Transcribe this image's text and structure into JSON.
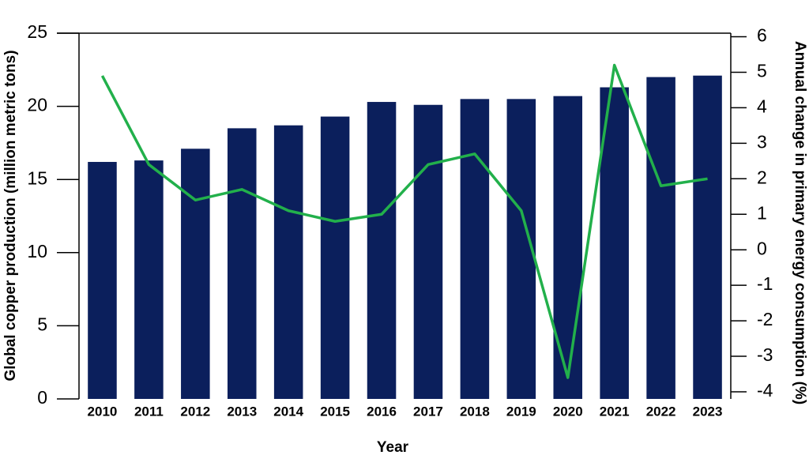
{
  "chart_data": {
    "type": "bar-line",
    "x_label": "Year",
    "y_label": "Global copper production (million metric tons)",
    "y2_label": "Annual change in primary energy consumption (%)",
    "categories": [
      "2010",
      "2011",
      "2012",
      "2013",
      "2014",
      "2015",
      "2016",
      "2017",
      "2018",
      "2019",
      "2020",
      "2021",
      "2022",
      "2023"
    ],
    "series": [
      {
        "name": "Global copper production",
        "type": "bar",
        "color": "#0b1f5c",
        "values": [
          16.2,
          16.3,
          17.1,
          18.5,
          18.7,
          19.3,
          20.3,
          20.1,
          20.5,
          20.5,
          20.7,
          21.3,
          22.0,
          22.1
        ]
      },
      {
        "name": "Annual change in primary energy consumption",
        "type": "line",
        "axis": "y2",
        "color": "#22b04b",
        "values": [
          4.9,
          2.4,
          1.4,
          1.7,
          1.1,
          0.8,
          1.0,
          2.4,
          2.7,
          1.1,
          -3.6,
          5.2,
          1.8,
          2.0
        ]
      }
    ],
    "ylim": [
      0,
      25
    ],
    "yticks": [
      0,
      5,
      10,
      15,
      20,
      25
    ],
    "y2lim": [
      -4.2,
      6.1
    ],
    "y2ticks": [
      -4,
      -3,
      -2,
      -1,
      0,
      1,
      2,
      3,
      4,
      5,
      6
    ],
    "grid": false
  }
}
